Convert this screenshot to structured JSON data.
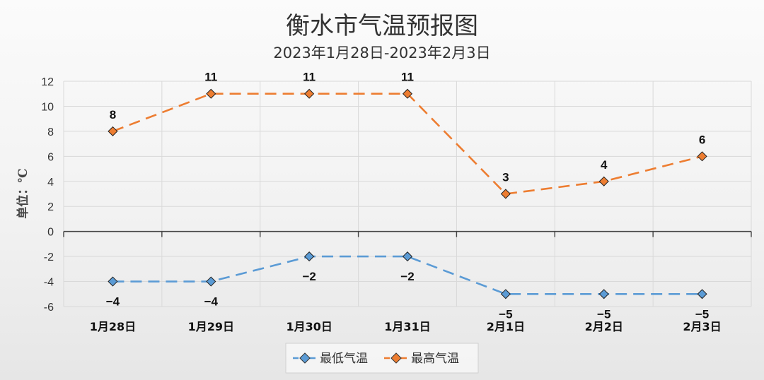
{
  "chart_data": {
    "type": "line",
    "title": "衡水市气温预报图",
    "subtitle": "2023年1月28日-2023年2月3日",
    "ylabel": "单位：℃",
    "xlabel": "",
    "categories": [
      "1月28日",
      "1月29日",
      "1月30日",
      "1月31日",
      "2月1日",
      "2月2日",
      "2月3日"
    ],
    "ylim": [
      -6,
      12
    ],
    "yticks": [
      12,
      10,
      8,
      6,
      4,
      2,
      0,
      -2,
      -4,
      -6
    ],
    "grid": true,
    "legend_position": "bottom",
    "series": [
      {
        "name": "最低气温",
        "values": [
          -4,
          -4,
          -2,
          -2,
          -5,
          -5,
          -5
        ],
        "labels": [
          "−4",
          "−4",
          "−2",
          "−2",
          "−5",
          "−5",
          "−5"
        ],
        "color": "#5b9bd5",
        "label_position": "below"
      },
      {
        "name": "最高气温",
        "values": [
          8,
          11,
          11,
          11,
          3,
          4,
          6
        ],
        "labels": [
          "8",
          "11",
          "11",
          "11",
          "3",
          "4",
          "6"
        ],
        "color": "#ed7d31",
        "label_position": "above"
      }
    ]
  }
}
